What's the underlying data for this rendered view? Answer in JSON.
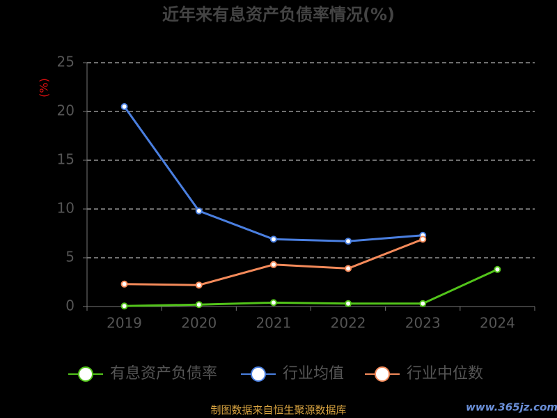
{
  "chart_data": {
    "type": "line",
    "title": "近年来有息资产负债率情况(%)",
    "y_label": "(%)",
    "categories": [
      "2019",
      "2020",
      "2021",
      "2022",
      "2023",
      "2024"
    ],
    "series": [
      {
        "name": "有息资产负债率",
        "color": "#52c41a",
        "values": [
          0.05,
          0.2,
          0.4,
          0.3,
          0.3,
          3.8
        ]
      },
      {
        "name": "行业均值",
        "color": "#4a7fe0",
        "values": [
          20.5,
          9.8,
          6.9,
          6.7,
          7.3,
          null
        ]
      },
      {
        "name": "行业中位数",
        "color": "#f48a5a",
        "values": [
          2.3,
          2.2,
          4.3,
          3.9,
          6.9,
          null
        ]
      }
    ],
    "ylim": [
      0,
      25
    ],
    "yticks": [
      0,
      5,
      10,
      15,
      20,
      25
    ],
    "grid": true,
    "source": "制图数据来自恒生聚源数据库",
    "watermark": "www.365jz.com"
  }
}
